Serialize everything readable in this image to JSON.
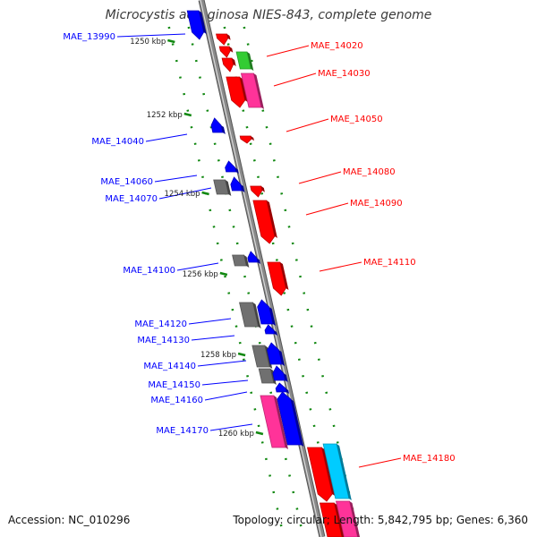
{
  "title": "Microcystis aeruginosa NIES-843, complete genome",
  "footer": {
    "accession": "Accession: NC_010296",
    "summary": "Topology: circular; Length: 5,842,795 bp; Genes: 6,360"
  },
  "colors": {
    "forward_gene": "#ff0000",
    "reverse_gene": "#0000ff",
    "rna_gene": "#33cc33",
    "pink_gene": "#ff3399",
    "cyan_gene": "#00ccff",
    "grey_gene": "#707070",
    "backbone": "#8a8a8a",
    "tick": "#118811"
  },
  "ticks": [
    "1250 kbp",
    "1252 kbp",
    "1254 kbp",
    "1256 kbp",
    "1258 kbp",
    "1260 kbp"
  ],
  "genes_left": [
    "MAE_13990",
    "MAE_14040",
    "MAE_14060",
    "MAE_14070",
    "MAE_14100",
    "MAE_14120",
    "MAE_14130",
    "MAE_14140",
    "MAE_14150",
    "MAE_14160",
    "MAE_14170"
  ],
  "genes_right": [
    "MAE_14020",
    "MAE_14030",
    "MAE_14050",
    "MAE_14080",
    "MAE_14090",
    "MAE_14110",
    "MAE_14180"
  ]
}
